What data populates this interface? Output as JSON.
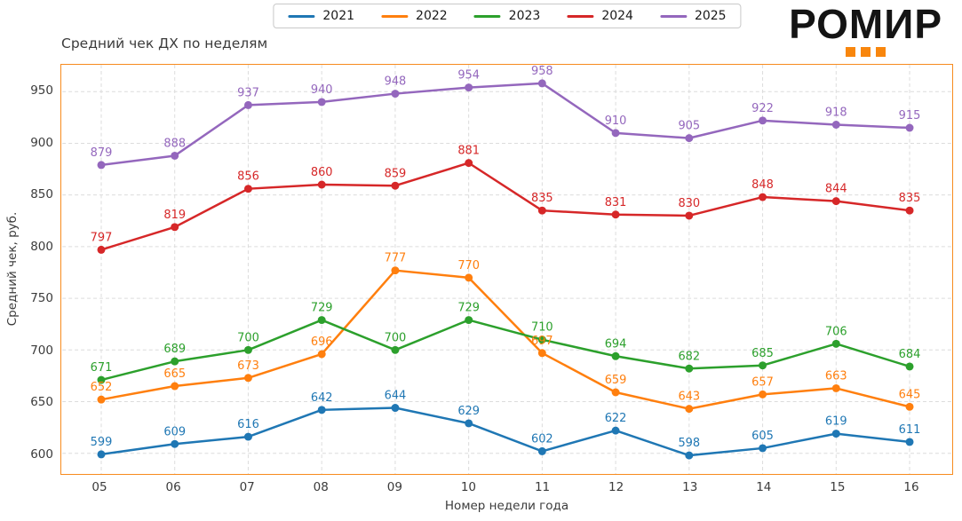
{
  "logo": {
    "text": "РОМИР",
    "square_color": "#f8860d",
    "square_count": 3
  },
  "title": "Средний чек ДХ по неделям",
  "axes": {
    "xlabel": "Номер недели года",
    "ylabel": "Средний чек, руб.",
    "border_color": "#f78b1e",
    "grid_color": "#dcdcdc"
  },
  "legend": {
    "position": "top-center",
    "items": [
      {
        "label": "2021",
        "color": "#1f77b4"
      },
      {
        "label": "2022",
        "color": "#ff7f0e"
      },
      {
        "label": "2023",
        "color": "#2ca02c"
      },
      {
        "label": "2024",
        "color": "#d62728"
      },
      {
        "label": "2025",
        "color": "#9467bd"
      }
    ]
  },
  "chart_data": {
    "type": "line",
    "title": "Средний чек ДХ по неделям",
    "xlabel": "Номер недели года",
    "ylabel": "Средний чек, руб.",
    "categories": [
      "05",
      "06",
      "07",
      "08",
      "09",
      "10",
      "11",
      "12",
      "13",
      "14",
      "15",
      "16"
    ],
    "series": [
      {
        "name": "2021",
        "color": "#1f77b4",
        "values": [
          599,
          609,
          616,
          642,
          644,
          629,
          602,
          622,
          598,
          605,
          619,
          611
        ]
      },
      {
        "name": "2022",
        "color": "#ff7f0e",
        "values": [
          652,
          665,
          673,
          696,
          777,
          770,
          697,
          659,
          643,
          657,
          663,
          645
        ]
      },
      {
        "name": "2023",
        "color": "#2ca02c",
        "values": [
          671,
          689,
          700,
          729,
          700,
          729,
          710,
          694,
          682,
          685,
          706,
          684
        ]
      },
      {
        "name": "2024",
        "color": "#d62728",
        "values": [
          797,
          819,
          856,
          860,
          859,
          881,
          835,
          831,
          830,
          848,
          844,
          835
        ]
      },
      {
        "name": "2025",
        "color": "#9467bd",
        "values": [
          879,
          888,
          937,
          940,
          948,
          954,
          958,
          910,
          905,
          922,
          918,
          915
        ]
      }
    ],
    "yticks": [
      600,
      650,
      700,
      750,
      800,
      850,
      900,
      950
    ],
    "ylim": [
      580,
      976
    ],
    "grid": true,
    "grid_style": "dashed",
    "legend_position": "top-center",
    "point_labels_visible": true
  }
}
